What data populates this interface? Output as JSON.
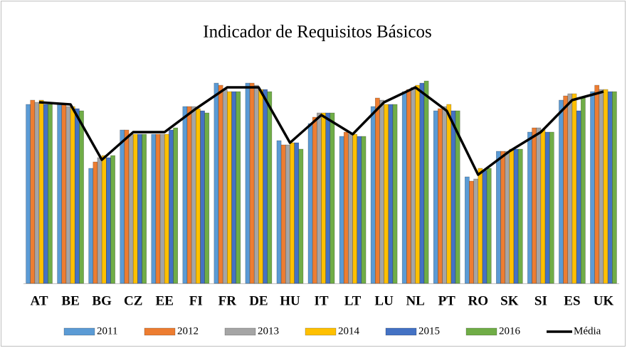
{
  "chart_data": {
    "type": "bar",
    "title": "Indicador  de Requisitos Básicos",
    "categories": [
      "AT",
      "BE",
      "BG",
      "CZ",
      "EE",
      "FI",
      "FR",
      "DE",
      "HU",
      "IT",
      "LT",
      "LU",
      "NL",
      "PT",
      "RO",
      "SK",
      "SI",
      "ES",
      "UK"
    ],
    "ylim": [
      0,
      100
    ],
    "series": [
      {
        "name": "2011",
        "color": "#5b9bd5",
        "values": [
          84,
          84,
          54,
          72,
          70,
          83,
          94,
          94,
          67,
          75,
          69,
          83,
          90,
          81,
          50,
          62,
          71,
          86,
          90
        ]
      },
      {
        "name": "2012",
        "color": "#ed7d31",
        "values": [
          86,
          84,
          57,
          72,
          70,
          83,
          93,
          94,
          65,
          78,
          71,
          87,
          91,
          82,
          48,
          62,
          73,
          88,
          93
        ]
      },
      {
        "name": "2013",
        "color": "#a5a5a5",
        "values": [
          85,
          83,
          59,
          70,
          70,
          83,
          91,
          93,
          65,
          80,
          70,
          86,
          92,
          83,
          49,
          62,
          73,
          89,
          91
        ]
      },
      {
        "name": "2014",
        "color": "#ffc000",
        "values": [
          86,
          83,
          60,
          70,
          70,
          82,
          90,
          91,
          66,
          80,
          70,
          84,
          93,
          84,
          54,
          63,
          72,
          89,
          91
        ]
      },
      {
        "name": "2015",
        "color": "#4472c4",
        "values": [
          84,
          82,
          59,
          70,
          72,
          81,
          90,
          91,
          66,
          80,
          69,
          84,
          94,
          81,
          53,
          63,
          71,
          81,
          90
        ]
      },
      {
        "name": "2016",
        "color": "#70ad47",
        "values": [
          84,
          81,
          60,
          70,
          73,
          80,
          90,
          90,
          63,
          80,
          69,
          84,
          95,
          81,
          54,
          63,
          71,
          87,
          90
        ]
      },
      {
        "name": "Média",
        "color": "#000000",
        "type": "line",
        "values": [
          85,
          84,
          58,
          71,
          71,
          82,
          92,
          92,
          66,
          79,
          70,
          85,
          92,
          81,
          51,
          62,
          71,
          86,
          90
        ]
      }
    ]
  }
}
